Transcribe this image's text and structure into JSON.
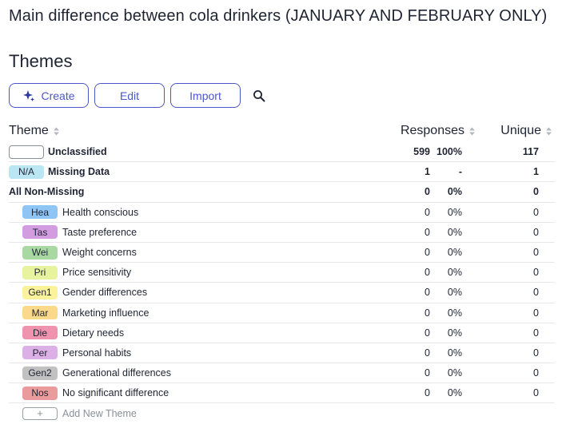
{
  "page": {
    "title": "Main difference between cola drinkers (JANUARY AND FEBRUARY ONLY)",
    "section_title": "Themes"
  },
  "toolbar": {
    "create_label": "Create",
    "edit_label": "Edit",
    "import_label": "Import",
    "accent_color": "#4b57c9",
    "icons": [
      "sparkle-icon",
      "search-icon"
    ]
  },
  "table": {
    "headers": {
      "theme": "Theme",
      "responses": "Responses",
      "unique": "Unique"
    },
    "summary_rows": [
      {
        "badge": "",
        "name": "Unclassified",
        "responses": "599",
        "percent": "100%",
        "unique": "117"
      },
      {
        "badge": "N/A",
        "name": "Missing Data",
        "responses": "1",
        "percent": "-",
        "unique": "1"
      },
      {
        "badge": "",
        "name": "All Non-Missing",
        "responses": "0",
        "percent": "0%",
        "unique": "0"
      }
    ],
    "themes": [
      {
        "code": "Hea",
        "name": "Health conscious",
        "color": "#8ec5f5",
        "responses": "0",
        "percent": "0%",
        "unique": "0"
      },
      {
        "code": "Tas",
        "name": "Taste preference",
        "color": "#d39be0",
        "responses": "0",
        "percent": "0%",
        "unique": "0"
      },
      {
        "code": "Wei",
        "name": "Weight concerns",
        "color": "#a9d9a2",
        "responses": "0",
        "percent": "0%",
        "unique": "0"
      },
      {
        "code": "Pri",
        "name": "Price sensitivity",
        "color": "#e8f3a0",
        "responses": "0",
        "percent": "0%",
        "unique": "0"
      },
      {
        "code": "Gen1",
        "name": "Gender differences",
        "color": "#fbf29c",
        "responses": "0",
        "percent": "0%",
        "unique": "0"
      },
      {
        "code": "Mar",
        "name": "Marketing influence",
        "color": "#fbd98a",
        "responses": "0",
        "percent": "0%",
        "unique": "0"
      },
      {
        "code": "Die",
        "name": "Dietary needs",
        "color": "#ef93ae",
        "responses": "0",
        "percent": "0%",
        "unique": "0"
      },
      {
        "code": "Per",
        "name": "Personal habits",
        "color": "#dcb0e6",
        "responses": "0",
        "percent": "0%",
        "unique": "0"
      },
      {
        "code": "Gen2",
        "name": "Generational differences",
        "color": "#c1c1c1",
        "responses": "0",
        "percent": "0%",
        "unique": "0"
      },
      {
        "code": "Nos",
        "name": "No significant difference",
        "color": "#ea9c9c",
        "responses": "0",
        "percent": "0%",
        "unique": "0"
      }
    ],
    "add_theme_label": "Add New Theme",
    "add_theme_symbol": "+"
  }
}
